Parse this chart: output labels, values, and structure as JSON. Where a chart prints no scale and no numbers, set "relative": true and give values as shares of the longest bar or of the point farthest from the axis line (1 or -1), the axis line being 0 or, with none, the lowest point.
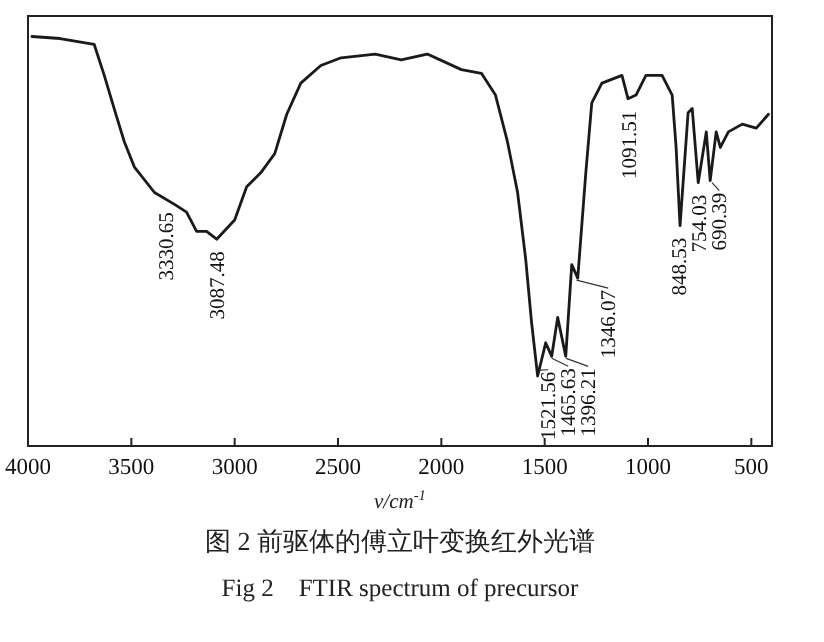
{
  "chart_data": {
    "type": "line",
    "title": "图 2  前驱体的傅立叶变换红外光谱",
    "subtitle": "Fig 2    FTIR spectrum of precursor",
    "xlabel": "ν/cm$^{-1}$",
    "relative": true,
    "tick_labels": "x",
    "color": "#1a1a1a",
    "xlim": [
      4000,
      400
    ],
    "xticks": [
      4000,
      3500,
      3000,
      2500,
      2000,
      1500,
      1000,
      500
    ],
    "x": [
      3981,
      3845,
      3680,
      3631,
      3583,
      3534,
      3485,
      3388,
      3291,
      3233,
      3184,
      3136,
      3087,
      3000,
      2942,
      2874,
      2806,
      2748,
      2680,
      2583,
      2485,
      2320,
      2194,
      2068,
      1903,
      1806,
      1738,
      1680,
      1631,
      1592,
      1563,
      1534,
      1495,
      1466,
      1437,
      1398,
      1369,
      1340,
      1301,
      1272,
      1223,
      1126,
      1097,
      1058,
      1010,
      932,
      883,
      864,
      845,
      806,
      786,
      757,
      718,
      699,
      670,
      650,
      611,
      544,
      476,
      417
    ],
    "values": [
      1.0,
      0.995,
      0.981,
      0.905,
      0.824,
      0.743,
      0.681,
      0.619,
      0.59,
      0.571,
      0.524,
      0.524,
      0.505,
      0.552,
      0.633,
      0.667,
      0.714,
      0.81,
      0.886,
      0.929,
      0.948,
      0.957,
      0.943,
      0.957,
      0.919,
      0.91,
      0.857,
      0.743,
      0.619,
      0.457,
      0.3,
      0.171,
      0.252,
      0.219,
      0.314,
      0.219,
      0.443,
      0.41,
      0.667,
      0.838,
      0.886,
      0.905,
      0.848,
      0.857,
      0.905,
      0.905,
      0.857,
      0.729,
      0.538,
      0.814,
      0.824,
      0.643,
      0.767,
      0.648,
      0.767,
      0.729,
      0.767,
      0.786,
      0.776,
      0.81
    ],
    "annotations": [
      {
        "text": "3330.65",
        "x": 3330.65,
        "y": 0.6
      },
      {
        "text": "3087.48",
        "x": 3087.48,
        "y": 0.505
      },
      {
        "text": "1521.56",
        "x": 1521.56,
        "y": 0.19
      },
      {
        "text": "1465.63",
        "x": 1465.63,
        "y": 0.219
      },
      {
        "text": "1396.21",
        "x": 1396.21,
        "y": 0.219
      },
      {
        "text": "1346.07",
        "x": 1346.07,
        "y": 0.41
      },
      {
        "text": "1091.51",
        "x": 1091.51,
        "y": 0.848
      },
      {
        "text": "848.53",
        "x": 848.53,
        "y": 0.538
      },
      {
        "text": "754.03",
        "x": 754.03,
        "y": 0.643
      },
      {
        "text": "690.39",
        "x": 690.39,
        "y": 0.648
      }
    ]
  }
}
